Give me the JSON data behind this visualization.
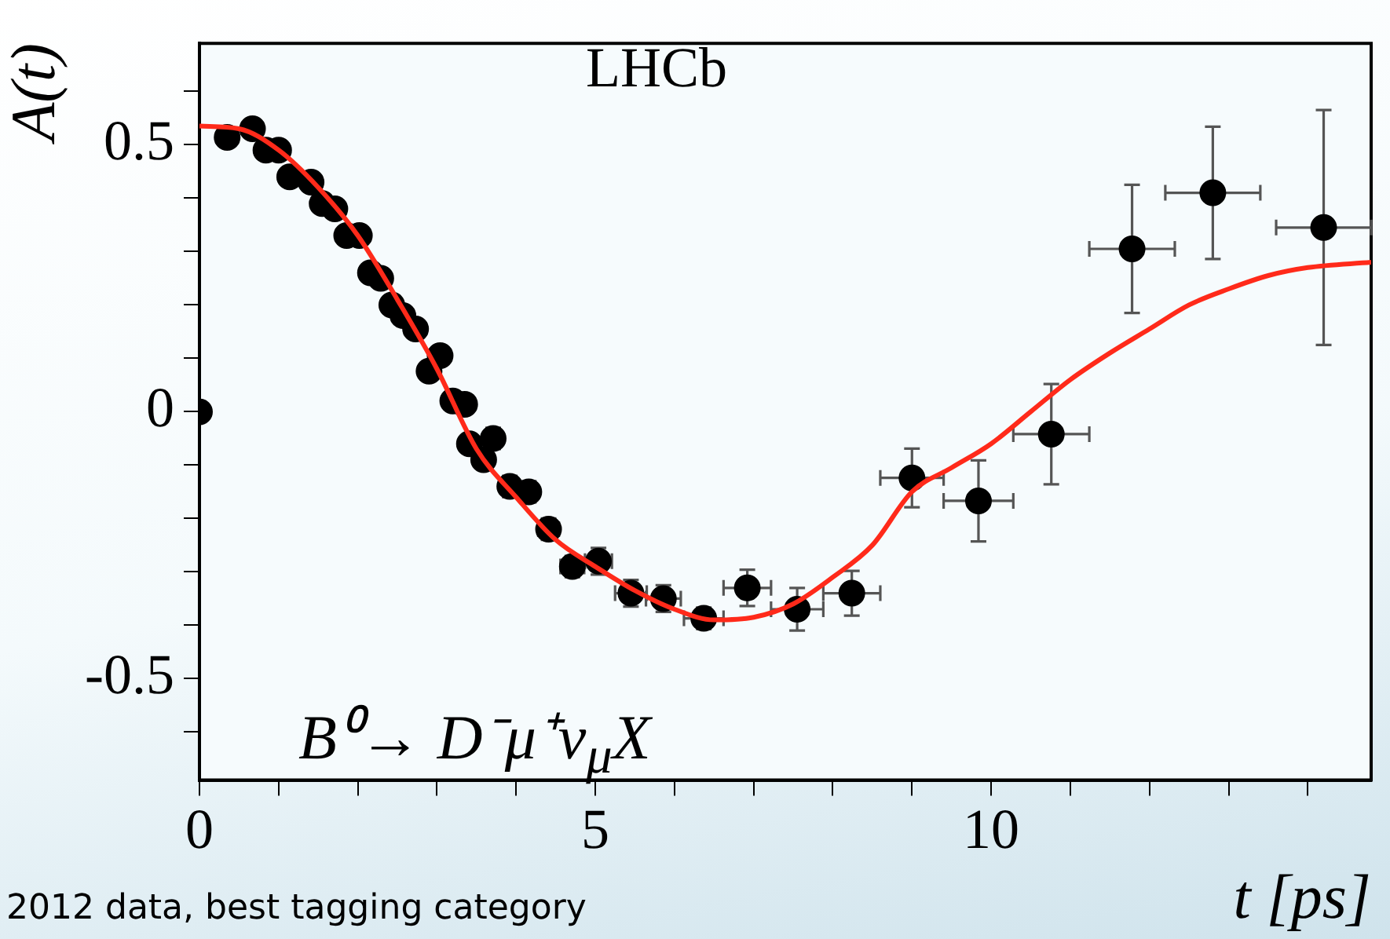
{
  "chart_data": {
    "type": "scatter",
    "xlabel": "t [ps]",
    "ylabel": "A(t)",
    "annotations": [
      "LHCb",
      "B⁰→ D⁻μ⁺ν$_{μ}$X",
      "2012 data, best tagging category"
    ],
    "xlim": [
      0,
      14.8
    ],
    "ylim": [
      -0.69,
      0.69
    ],
    "xticks": [
      0,
      {
        "value": 1,
        "label": null
      },
      {
        "value": 2,
        "label": null
      },
      {
        "value": 3,
        "label": null
      },
      {
        "value": 4,
        "label": null
      },
      5,
      {
        "value": 6,
        "label": null
      },
      {
        "value": 7,
        "label": null
      },
      {
        "value": 8,
        "label": null
      },
      {
        "value": 9,
        "label": null
      },
      10,
      {
        "value": 11,
        "label": null
      },
      {
        "value": 12,
        "label": null
      },
      {
        "value": 13,
        "label": null
      },
      {
        "value": 14,
        "label": null
      }
    ],
    "yticks": [
      {
        "value": -0.6,
        "label": null
      },
      -0.5,
      {
        "value": -0.4,
        "label": null
      },
      {
        "value": -0.3,
        "label": null
      },
      {
        "value": -0.2,
        "label": null
      },
      {
        "value": -0.1,
        "label": null
      },
      0,
      {
        "value": 0.1,
        "label": null
      },
      {
        "value": 0.2,
        "label": null
      },
      {
        "value": 0.3,
        "label": null
      },
      {
        "value": 0.4,
        "label": null
      },
      0.5,
      {
        "value": 0.6,
        "label": null
      }
    ],
    "grid": false,
    "legend": false,
    "marker": "circle",
    "series": [
      {
        "type": "line",
        "color": "#ff2a1a",
        "marker": "none",
        "line_style": "solid",
        "x": [
          0,
          0.5,
          1,
          1.5,
          2,
          2.5,
          3,
          3.5,
          4,
          4.5,
          5,
          5.5,
          6,
          6.5,
          7,
          7.5,
          8,
          8.5,
          9,
          9.5,
          10,
          10.5,
          11,
          11.5,
          12,
          12.5,
          13,
          13.5,
          14,
          14.8
        ],
        "values": [
          0.535,
          0.53,
          0.49,
          0.42,
          0.33,
          0.21,
          0.08,
          -0.07,
          -0.16,
          -0.24,
          -0.29,
          -0.335,
          -0.37,
          -0.39,
          -0.385,
          -0.36,
          -0.31,
          -0.25,
          -0.15,
          -0.105,
          -0.06,
          0.0,
          0.06,
          0.11,
          0.155,
          0.2,
          0.23,
          0.255,
          0.27,
          0.28
        ]
      },
      {
        "color": "#000000",
        "x": [
          0,
          0.35,
          0.67,
          0.84,
          1.0,
          1.14,
          1.41,
          1.55,
          1.71,
          1.86,
          2.02,
          2.16,
          2.29,
          2.43,
          2.57,
          2.73,
          2.9,
          3.04,
          3.2,
          3.35,
          3.41,
          3.59,
          3.71,
          3.92,
          4.16,
          4.41,
          4.71,
          5.04,
          5.45,
          5.86,
          6.37,
          6.92,
          7.55,
          8.24,
          9.0,
          9.84,
          10.76,
          11.78,
          12.8,
          14.2
        ],
        "values": [
          0,
          0.514,
          0.53,
          0.49,
          0.49,
          0.44,
          0.43,
          0.39,
          0.38,
          0.33,
          0.33,
          0.26,
          0.25,
          0.2,
          0.18,
          0.155,
          0.076,
          0.105,
          0.02,
          0.014,
          -0.06,
          -0.09,
          -0.05,
          -0.14,
          -0.15,
          -0.22,
          -0.29,
          -0.28,
          -0.34,
          -0.35,
          -0.387,
          -0.33,
          -0.37,
          -0.34,
          -0.124,
          -0.167,
          -0.042,
          0.305,
          0.41,
          0.345
        ],
        "errors": [
          null,
          null,
          null,
          null,
          null,
          null,
          null,
          null,
          null,
          null,
          null,
          null,
          null,
          null,
          null,
          null,
          null,
          null,
          null,
          null,
          null,
          null,
          0.02,
          0.02,
          0.02,
          0.02,
          0.02,
          0.025,
          0.025,
          0.025,
          0.02,
          0.034,
          0.04,
          0.042,
          0.055,
          0.076,
          0.094,
          0.12,
          0.124,
          0.22
        ],
        "xerrors": [
          null,
          null,
          null,
          null,
          null,
          null,
          null,
          null,
          null,
          null,
          null,
          null,
          null,
          null,
          null,
          null,
          null,
          null,
          null,
          null,
          null,
          null,
          0.1,
          0.12,
          0.12,
          0.13,
          0.15,
          0.17,
          0.2,
          0.22,
          0.25,
          0.3,
          0.33,
          0.36,
          0.4,
          0.44,
          0.48,
          0.54,
          0.6,
          0.6
        ]
      }
    ]
  }
}
